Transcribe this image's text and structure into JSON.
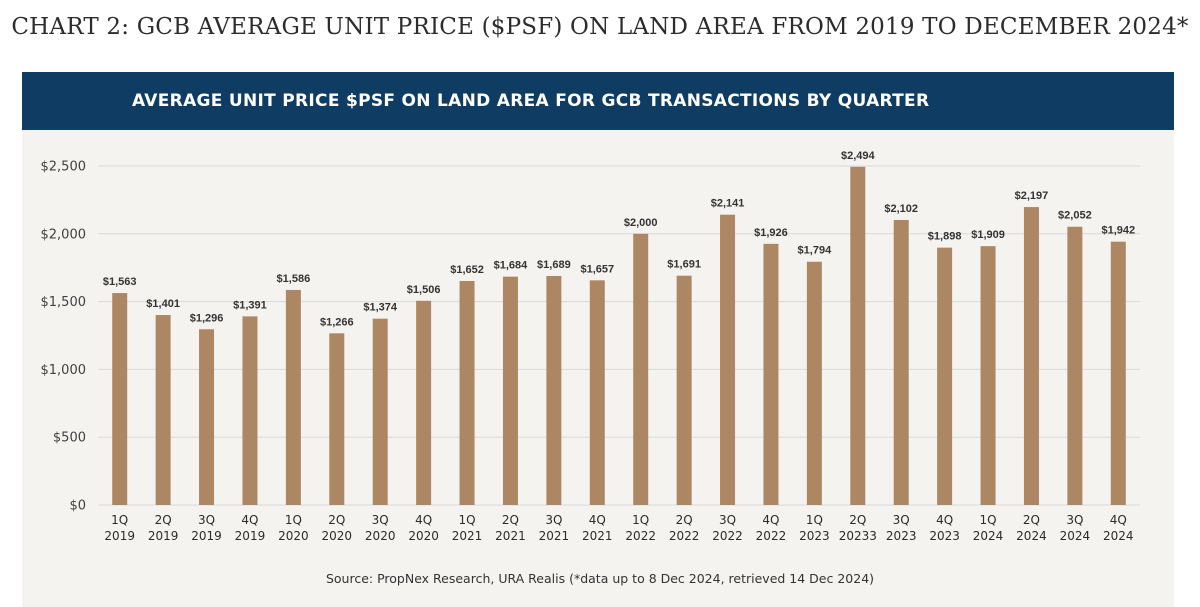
{
  "page_title": "CHART 2: GCB AVERAGE UNIT PRICE ($PSF) ON LAND AREA FROM 2019 TO DECEMBER 2024*",
  "chart_data": {
    "type": "bar",
    "title": "AVERAGE UNIT PRICE $PSF ON LAND AREA FOR GCB TRANSACTIONS BY QUARTER",
    "categories": [
      [
        "1Q",
        "2019"
      ],
      [
        "2Q",
        "2019"
      ],
      [
        "3Q",
        "2019"
      ],
      [
        "4Q",
        "2019"
      ],
      [
        "1Q",
        "2020"
      ],
      [
        "2Q",
        "2020"
      ],
      [
        "3Q",
        "2020"
      ],
      [
        "4Q",
        "2020"
      ],
      [
        "1Q",
        "2021"
      ],
      [
        "2Q",
        "2021"
      ],
      [
        "3Q",
        "2021"
      ],
      [
        "4Q",
        "2021"
      ],
      [
        "1Q",
        "2022"
      ],
      [
        "2Q",
        "2022"
      ],
      [
        "3Q",
        "2022"
      ],
      [
        "4Q",
        "2022"
      ],
      [
        "1Q",
        "2023"
      ],
      [
        "2Q",
        "20233"
      ],
      [
        "3Q",
        "2023"
      ],
      [
        "4Q",
        "2023"
      ],
      [
        "1Q",
        "2024"
      ],
      [
        "2Q",
        "2024"
      ],
      [
        "3Q",
        "2024"
      ],
      [
        "4Q",
        "2024"
      ]
    ],
    "values": [
      1563,
      1401,
      1296,
      1391,
      1586,
      1266,
      1374,
      1506,
      1652,
      1684,
      1689,
      1657,
      2000,
      1691,
      2141,
      1926,
      1794,
      2494,
      2102,
      1898,
      1909,
      2197,
      2052,
      1942
    ],
    "data_labels": [
      "$1,563",
      "$1,401",
      "$1,296",
      "$1,391",
      "$1,586",
      "$1,266",
      "$1,374",
      "$1,506",
      "$1,652",
      "$1,684",
      "$1,689",
      "$1,657",
      "$2,000",
      "$1,691",
      "$2,141",
      "$1,926",
      "$1,794",
      "$2,494",
      "$2,102",
      "$1,898",
      "$1,909",
      "$2,197",
      "$2,052",
      "$1,942"
    ],
    "ylim": [
      0,
      2500
    ],
    "yticks": [
      0,
      500,
      1000,
      1500,
      2000,
      2500
    ],
    "ytick_labels": [
      "$0",
      "$500",
      "$1,000",
      "$1,500",
      "$2,000",
      "$2,500"
    ],
    "grid": true,
    "legend": "none",
    "bar_color": "#ad8763",
    "grid_color": "#d9d9d9"
  },
  "banner_color": "#0e3c63",
  "source": "Source: PropNex Research, URA Realis (*data up to 8 Dec 2024, retrieved 14 Dec 2024)"
}
